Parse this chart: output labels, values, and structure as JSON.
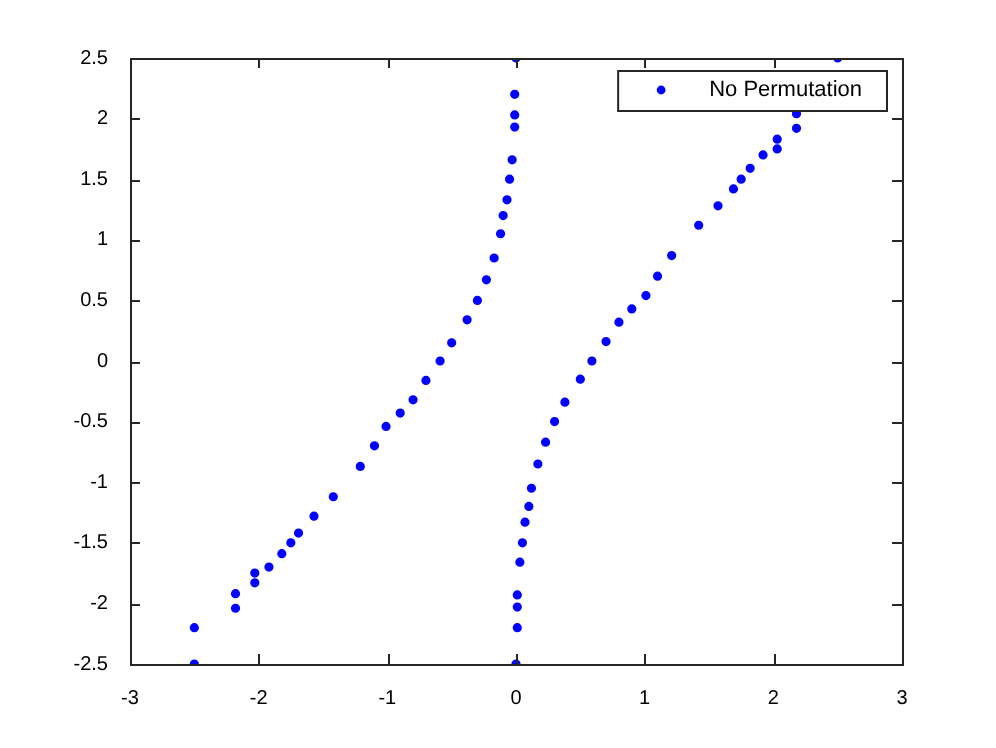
{
  "chart_data": {
    "type": "scatter",
    "xlim": [
      -3,
      3
    ],
    "ylim": [
      -2.5,
      2.5
    ],
    "xticks": [
      -3,
      -2,
      -1,
      0,
      1,
      2,
      3
    ],
    "yticks": [
      -2.5,
      -2,
      -1.5,
      -1,
      -0.5,
      0,
      0.5,
      1,
      1.5,
      2,
      2.5
    ],
    "grid": false,
    "legend": "top right",
    "marker": "circle",
    "series": [
      {
        "name": "No Permutation",
        "color": "#0000ff",
        "x": [
          -2.5,
          -2.5,
          -2.18,
          -2.18,
          -2.03,
          -2.03,
          -1.92,
          -1.82,
          -1.75,
          -1.69,
          -1.57,
          -1.42,
          -1.21,
          -1.1,
          -1.01,
          -0.9,
          -0.8,
          -0.7,
          -0.59,
          -0.5,
          -0.38,
          -0.3,
          -0.23,
          -0.17,
          -0.12,
          -0.1,
          -0.07,
          -0.05,
          -0.03,
          -0.01,
          -0.01,
          -0.01,
          0,
          0,
          0.01,
          0.01,
          0.01,
          0.03,
          0.05,
          0.07,
          0.1,
          0.12,
          0.17,
          0.23,
          0.3,
          0.38,
          0.5,
          0.59,
          0.7,
          0.8,
          0.9,
          1.01,
          1.1,
          1.21,
          1.42,
          1.57,
          1.69,
          1.75,
          1.82,
          1.92,
          2.03,
          2.03,
          2.18,
          2.18,
          2.5
        ],
        "values": [
          -2.5,
          -2.2,
          -2.04,
          -1.92,
          -1.83,
          -1.75,
          -1.7,
          -1.59,
          -1.5,
          -1.42,
          -1.28,
          -1.12,
          -0.87,
          -0.7,
          -0.54,
          -0.43,
          -0.32,
          -0.16,
          0,
          0.15,
          0.34,
          0.5,
          0.67,
          0.85,
          1.05,
          1.2,
          1.33,
          1.5,
          1.66,
          1.93,
          2.03,
          2.2,
          2.5,
          -2.5,
          -2.2,
          -2.03,
          -1.93,
          -1.66,
          -1.5,
          -1.33,
          -1.2,
          -1.05,
          -0.85,
          -0.67,
          -0.5,
          -0.34,
          -0.15,
          0,
          0.16,
          0.32,
          0.43,
          0.54,
          0.7,
          0.87,
          1.12,
          1.28,
          1.42,
          1.5,
          1.59,
          1.7,
          1.75,
          1.83,
          1.92,
          2.04,
          2.5
        ]
      }
    ]
  }
}
